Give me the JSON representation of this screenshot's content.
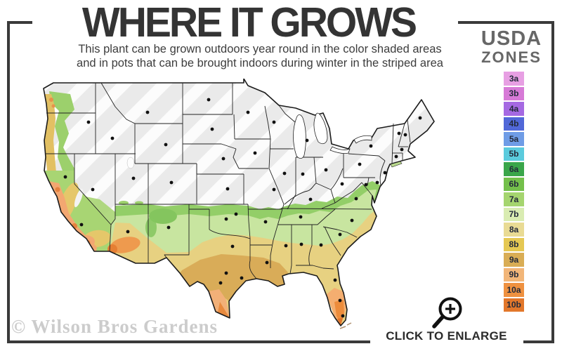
{
  "header": {
    "title": "WHERE IT GROWS",
    "subtitle_line1": "This plant can be grown outdoors year round in the color shaded areas",
    "subtitle_line2": "and in pots that can be brought indoors during winter in the striped area"
  },
  "legend": {
    "title_top": "USDA",
    "title_bottom": "ZONES",
    "zones": [
      {
        "label": "3a",
        "color": "#e79fe3"
      },
      {
        "label": "3b",
        "color": "#d77ad7"
      },
      {
        "label": "4a",
        "color": "#a569e2"
      },
      {
        "label": "4b",
        "color": "#5168d8"
      },
      {
        "label": "5a",
        "color": "#6f9ce6"
      },
      {
        "label": "5b",
        "color": "#5bcbdd"
      },
      {
        "label": "6a",
        "color": "#3aa64a"
      },
      {
        "label": "6b",
        "color": "#74c04b"
      },
      {
        "label": "7a",
        "color": "#a5d56f"
      },
      {
        "label": "7b",
        "color": "#d9ecb2"
      },
      {
        "label": "8a",
        "color": "#e9db94"
      },
      {
        "label": "8b",
        "color": "#e5c853"
      },
      {
        "label": "9a",
        "color": "#d9ad55"
      },
      {
        "label": "9b",
        "color": "#f2b679"
      },
      {
        "label": "10a",
        "color": "#ef9140"
      },
      {
        "label": "10b",
        "color": "#e2772b"
      }
    ]
  },
  "map": {
    "kind": "us-hardiness-zone-map",
    "striped_area_color": "#eaeaea",
    "city_dot_color": "#111111"
  },
  "footer": {
    "watermark": "© Wilson Bros Gardens",
    "enlarge_label": "CLICK TO ENLARGE"
  },
  "theme": {
    "frame_color": "#3a3a3a",
    "title_color": "#343434"
  }
}
